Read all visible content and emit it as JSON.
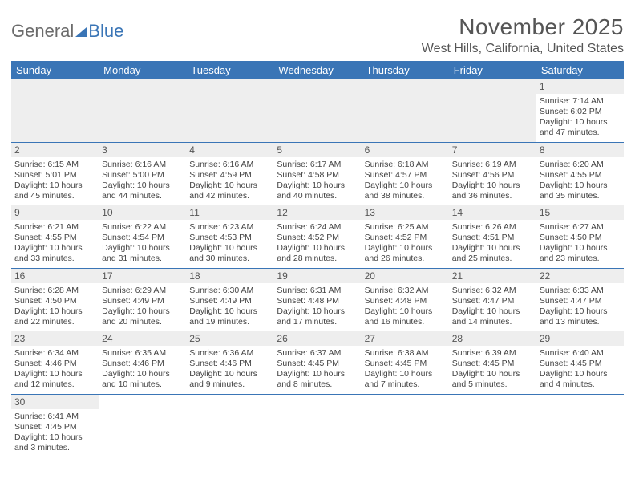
{
  "logo": {
    "part1": "General",
    "part2": "Blue"
  },
  "title": "November 2025",
  "location": "West Hills, California, United States",
  "dayHeaders": [
    "Sunday",
    "Monday",
    "Tuesday",
    "Wednesday",
    "Thursday",
    "Friday",
    "Saturday"
  ],
  "colors": {
    "headerBg": "#3a75b6",
    "headerText": "#ffffff",
    "dayNumBg": "#eeeeee",
    "ruleColor": "#3a75b6",
    "bodyText": "#444444",
    "titleText": "#555555"
  },
  "weeks": [
    [
      null,
      null,
      null,
      null,
      null,
      null,
      {
        "num": "1",
        "sunrise": "Sunrise: 7:14 AM",
        "sunset": "Sunset: 6:02 PM",
        "daylight": "Daylight: 10 hours and 47 minutes."
      }
    ],
    [
      {
        "num": "2",
        "sunrise": "Sunrise: 6:15 AM",
        "sunset": "Sunset: 5:01 PM",
        "daylight": "Daylight: 10 hours and 45 minutes."
      },
      {
        "num": "3",
        "sunrise": "Sunrise: 6:16 AM",
        "sunset": "Sunset: 5:00 PM",
        "daylight": "Daylight: 10 hours and 44 minutes."
      },
      {
        "num": "4",
        "sunrise": "Sunrise: 6:16 AM",
        "sunset": "Sunset: 4:59 PM",
        "daylight": "Daylight: 10 hours and 42 minutes."
      },
      {
        "num": "5",
        "sunrise": "Sunrise: 6:17 AM",
        "sunset": "Sunset: 4:58 PM",
        "daylight": "Daylight: 10 hours and 40 minutes."
      },
      {
        "num": "6",
        "sunrise": "Sunrise: 6:18 AM",
        "sunset": "Sunset: 4:57 PM",
        "daylight": "Daylight: 10 hours and 38 minutes."
      },
      {
        "num": "7",
        "sunrise": "Sunrise: 6:19 AM",
        "sunset": "Sunset: 4:56 PM",
        "daylight": "Daylight: 10 hours and 36 minutes."
      },
      {
        "num": "8",
        "sunrise": "Sunrise: 6:20 AM",
        "sunset": "Sunset: 4:55 PM",
        "daylight": "Daylight: 10 hours and 35 minutes."
      }
    ],
    [
      {
        "num": "9",
        "sunrise": "Sunrise: 6:21 AM",
        "sunset": "Sunset: 4:55 PM",
        "daylight": "Daylight: 10 hours and 33 minutes."
      },
      {
        "num": "10",
        "sunrise": "Sunrise: 6:22 AM",
        "sunset": "Sunset: 4:54 PM",
        "daylight": "Daylight: 10 hours and 31 minutes."
      },
      {
        "num": "11",
        "sunrise": "Sunrise: 6:23 AM",
        "sunset": "Sunset: 4:53 PM",
        "daylight": "Daylight: 10 hours and 30 minutes."
      },
      {
        "num": "12",
        "sunrise": "Sunrise: 6:24 AM",
        "sunset": "Sunset: 4:52 PM",
        "daylight": "Daylight: 10 hours and 28 minutes."
      },
      {
        "num": "13",
        "sunrise": "Sunrise: 6:25 AM",
        "sunset": "Sunset: 4:52 PM",
        "daylight": "Daylight: 10 hours and 26 minutes."
      },
      {
        "num": "14",
        "sunrise": "Sunrise: 6:26 AM",
        "sunset": "Sunset: 4:51 PM",
        "daylight": "Daylight: 10 hours and 25 minutes."
      },
      {
        "num": "15",
        "sunrise": "Sunrise: 6:27 AM",
        "sunset": "Sunset: 4:50 PM",
        "daylight": "Daylight: 10 hours and 23 minutes."
      }
    ],
    [
      {
        "num": "16",
        "sunrise": "Sunrise: 6:28 AM",
        "sunset": "Sunset: 4:50 PM",
        "daylight": "Daylight: 10 hours and 22 minutes."
      },
      {
        "num": "17",
        "sunrise": "Sunrise: 6:29 AM",
        "sunset": "Sunset: 4:49 PM",
        "daylight": "Daylight: 10 hours and 20 minutes."
      },
      {
        "num": "18",
        "sunrise": "Sunrise: 6:30 AM",
        "sunset": "Sunset: 4:49 PM",
        "daylight": "Daylight: 10 hours and 19 minutes."
      },
      {
        "num": "19",
        "sunrise": "Sunrise: 6:31 AM",
        "sunset": "Sunset: 4:48 PM",
        "daylight": "Daylight: 10 hours and 17 minutes."
      },
      {
        "num": "20",
        "sunrise": "Sunrise: 6:32 AM",
        "sunset": "Sunset: 4:48 PM",
        "daylight": "Daylight: 10 hours and 16 minutes."
      },
      {
        "num": "21",
        "sunrise": "Sunrise: 6:32 AM",
        "sunset": "Sunset: 4:47 PM",
        "daylight": "Daylight: 10 hours and 14 minutes."
      },
      {
        "num": "22",
        "sunrise": "Sunrise: 6:33 AM",
        "sunset": "Sunset: 4:47 PM",
        "daylight": "Daylight: 10 hours and 13 minutes."
      }
    ],
    [
      {
        "num": "23",
        "sunrise": "Sunrise: 6:34 AM",
        "sunset": "Sunset: 4:46 PM",
        "daylight": "Daylight: 10 hours and 12 minutes."
      },
      {
        "num": "24",
        "sunrise": "Sunrise: 6:35 AM",
        "sunset": "Sunset: 4:46 PM",
        "daylight": "Daylight: 10 hours and 10 minutes."
      },
      {
        "num": "25",
        "sunrise": "Sunrise: 6:36 AM",
        "sunset": "Sunset: 4:46 PM",
        "daylight": "Daylight: 10 hours and 9 minutes."
      },
      {
        "num": "26",
        "sunrise": "Sunrise: 6:37 AM",
        "sunset": "Sunset: 4:45 PM",
        "daylight": "Daylight: 10 hours and 8 minutes."
      },
      {
        "num": "27",
        "sunrise": "Sunrise: 6:38 AM",
        "sunset": "Sunset: 4:45 PM",
        "daylight": "Daylight: 10 hours and 7 minutes."
      },
      {
        "num": "28",
        "sunrise": "Sunrise: 6:39 AM",
        "sunset": "Sunset: 4:45 PM",
        "daylight": "Daylight: 10 hours and 5 minutes."
      },
      {
        "num": "29",
        "sunrise": "Sunrise: 6:40 AM",
        "sunset": "Sunset: 4:45 PM",
        "daylight": "Daylight: 10 hours and 4 minutes."
      }
    ],
    [
      {
        "num": "30",
        "sunrise": "Sunrise: 6:41 AM",
        "sunset": "Sunset: 4:45 PM",
        "daylight": "Daylight: 10 hours and 3 minutes."
      },
      null,
      null,
      null,
      null,
      null,
      null
    ]
  ]
}
